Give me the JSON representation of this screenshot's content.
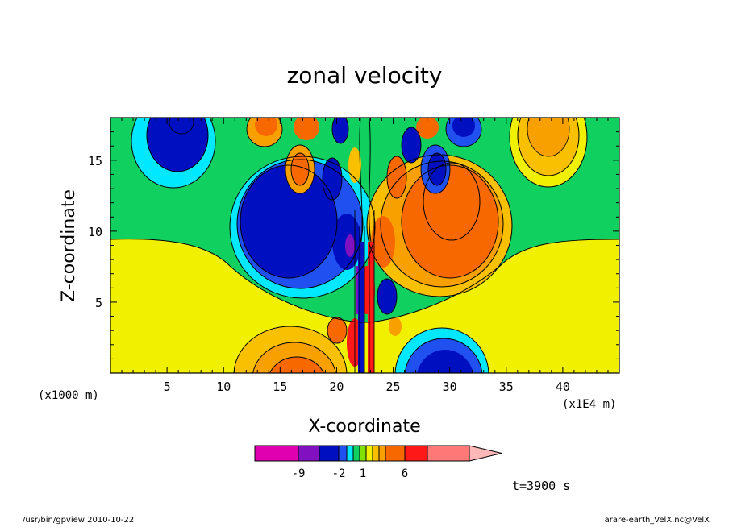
{
  "chart_data": {
    "type": "heatmap",
    "title": "zonal velocity",
    "xlabel": "X-coordinate",
    "ylabel": "Z-coordinate",
    "x_unit_left": "(x1000 m)",
    "x_unit_right": "(x1E4 m)",
    "xlim": [
      0,
      45
    ],
    "ylim": [
      0,
      18
    ],
    "x_ticks": [
      5,
      10,
      15,
      20,
      25,
      30,
      35,
      40
    ],
    "y_ticks": [
      5,
      10,
      15
    ],
    "time_label": "t=3900 s",
    "colorbar": {
      "levels": [
        -9,
        -6,
        -2,
        -1,
        0,
        1,
        2,
        3,
        6,
        9
      ],
      "tick_labels": [
        {
          "value": -9,
          "text": "-9"
        },
        {
          "value": -2,
          "text": "-2"
        },
        {
          "value": 1,
          "text": "1"
        },
        {
          "value": 6,
          "text": "6"
        }
      ],
      "colors": [
        "#e000b0",
        "#8010c0",
        "#0010c0",
        "#2050f0",
        "#00e8ff",
        "#10d060",
        "#80e000",
        "#f0f000",
        "#f8c000",
        "#f8a000",
        "#f86800",
        "#ff1818",
        "#ff7878",
        "#ffb8b8"
      ]
    }
  },
  "footer": {
    "left": "/usr/bin/gpview   2010-10-22",
    "right": "arare-earth_VelX.nc@VelX"
  }
}
